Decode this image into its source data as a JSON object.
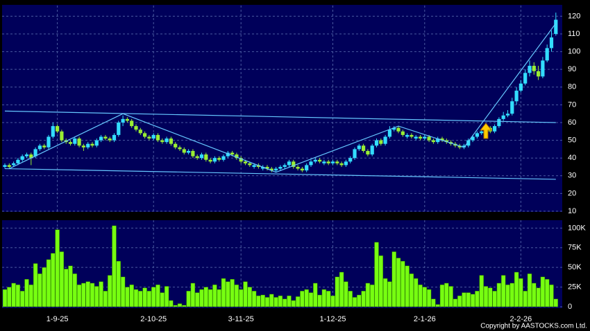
{
  "chart_data": {
    "type": "candlestick",
    "categories": [
      null,
      null,
      null,
      null,
      null,
      null,
      null,
      null,
      null,
      null,
      null,
      null,
      "1-9-25",
      null,
      null,
      null,
      null,
      null,
      null,
      null,
      null,
      null,
      null,
      null,
      null,
      null,
      null,
      null,
      null,
      null,
      null,
      null,
      null,
      null,
      "2-10-25",
      null,
      null,
      null,
      null,
      null,
      null,
      null,
      null,
      null,
      null,
      null,
      null,
      null,
      null,
      null,
      null,
      null,
      null,
      null,
      "3-11-25",
      null,
      null,
      null,
      null,
      null,
      null,
      null,
      null,
      null,
      null,
      null,
      null,
      null,
      null,
      null,
      null,
      null,
      null,
      null,
      null,
      "1-12-25",
      null,
      null,
      null,
      null,
      null,
      null,
      null,
      null,
      null,
      null,
      null,
      null,
      null,
      null,
      null,
      null,
      null,
      null,
      null,
      null,
      "2-1-26",
      null,
      null,
      null,
      null,
      null,
      null,
      null,
      null,
      null,
      null,
      null,
      null,
      null,
      null,
      null,
      null,
      null,
      null,
      null,
      null,
      null,
      "2-2-26",
      null,
      null,
      null,
      null,
      null,
      null,
      null,
      null
    ],
    "open": [
      35,
      36,
      36,
      37,
      39,
      41,
      42,
      41,
      45,
      47,
      46,
      52,
      58,
      55,
      50,
      49,
      48,
      51,
      47,
      46,
      48,
      47,
      50,
      52,
      51,
      50,
      53,
      60,
      62,
      61,
      58,
      56,
      54,
      52,
      51,
      53,
      50,
      49,
      51,
      48,
      46,
      45,
      43,
      44,
      41,
      40,
      42,
      39,
      38,
      40,
      39,
      41,
      43,
      42,
      40,
      38,
      37,
      35,
      36,
      34,
      35,
      34,
      33,
      34,
      35,
      36,
      38,
      35,
      34,
      33,
      36,
      38,
      39,
      37,
      38,
      37,
      38,
      37,
      36,
      38,
      40,
      45,
      47,
      44,
      42,
      47,
      50,
      48,
      52,
      56,
      57,
      55,
      52,
      53,
      51,
      52,
      51,
      52,
      50,
      49,
      51,
      50,
      49,
      48,
      47,
      46,
      47,
      50,
      52,
      54,
      55,
      57,
      55,
      58,
      62,
      64,
      65,
      72,
      78,
      82,
      88,
      92,
      89,
      86,
      95,
      102,
      110
    ],
    "high": [
      37,
      37,
      38,
      40,
      42,
      43,
      43,
      46,
      48,
      48,
      53,
      60,
      59,
      56,
      51,
      50,
      52,
      52,
      48,
      49,
      49,
      51,
      53,
      53,
      52,
      54,
      61,
      64,
      63,
      62,
      59,
      57,
      55,
      53,
      54,
      54,
      51,
      52,
      52,
      49,
      47,
      46,
      45,
      45,
      42,
      43,
      43,
      40,
      41,
      41,
      42,
      44,
      44,
      43,
      41,
      39,
      38,
      37,
      37,
      36,
      36,
      35,
      35,
      36,
      37,
      39,
      39,
      36,
      35,
      37,
      39,
      40,
      40,
      39,
      39,
      39,
      39,
      38,
      39,
      41,
      46,
      48,
      48,
      45,
      48,
      51,
      51,
      53,
      58,
      58,
      58,
      56,
      54,
      54,
      53,
      53,
      53,
      53,
      51,
      52,
      52,
      51,
      50,
      49,
      48,
      48,
      51,
      53,
      55,
      56,
      58,
      58,
      59,
      63,
      66,
      67,
      74,
      80,
      84,
      90,
      95,
      94,
      92,
      97,
      104,
      112,
      122
    ],
    "low": [
      34,
      34,
      35,
      36,
      38,
      40,
      36,
      40,
      44,
      45,
      45,
      51,
      54,
      49,
      48,
      47,
      47,
      46,
      44,
      45,
      46,
      46,
      49,
      50,
      49,
      49,
      52,
      58,
      60,
      57,
      55,
      53,
      51,
      50,
      50,
      49,
      48,
      48,
      47,
      45,
      44,
      42,
      42,
      40,
      39,
      39,
      38,
      37,
      37,
      38,
      38,
      40,
      41,
      39,
      37,
      36,
      35,
      34,
      34,
      33,
      33,
      32,
      32,
      33,
      34,
      35,
      34,
      33,
      32,
      32,
      35,
      37,
      37,
      36,
      36,
      36,
      36,
      35,
      35,
      37,
      39,
      44,
      43,
      41,
      41,
      46,
      47,
      47,
      51,
      55,
      54,
      52,
      51,
      51,
      50,
      50,
      50,
      49,
      48,
      48,
      49,
      48,
      47,
      46,
      45,
      45,
      46,
      49,
      51,
      53,
      54,
      54,
      54,
      57,
      61,
      63,
      64,
      70,
      77,
      81,
      86,
      87,
      84,
      85,
      94,
      100,
      109
    ],
    "close": [
      36,
      35,
      37,
      39,
      41,
      42,
      40,
      45,
      47,
      46,
      52,
      58,
      55,
      50,
      49,
      48,
      51,
      47,
      46,
      48,
      47,
      50,
      52,
      51,
      50,
      53,
      60,
      62,
      61,
      58,
      56,
      54,
      52,
      51,
      53,
      50,
      49,
      51,
      48,
      46,
      45,
      43,
      44,
      41,
      40,
      42,
      39,
      38,
      40,
      39,
      41,
      43,
      42,
      40,
      38,
      37,
      36,
      36,
      35,
      35,
      34,
      33,
      34,
      35,
      36,
      38,
      35,
      34,
      33,
      36,
      38,
      39,
      38,
      38,
      37,
      38,
      37,
      36,
      38,
      40,
      45,
      47,
      44,
      42,
      47,
      50,
      48,
      52,
      56,
      57,
      55,
      53,
      53,
      52,
      52,
      51,
      52,
      50,
      49,
      51,
      50,
      49,
      48,
      47,
      46,
      47,
      50,
      52,
      54,
      55,
      57,
      55,
      58,
      62,
      64,
      65,
      72,
      78,
      82,
      88,
      92,
      89,
      86,
      95,
      102,
      108,
      118
    ],
    "volume": [
      22000,
      25000,
      30000,
      28000,
      20000,
      35000,
      28000,
      55000,
      42000,
      50000,
      60000,
      68000,
      98000,
      70000,
      48000,
      52000,
      42000,
      28000,
      30000,
      32000,
      30000,
      26000,
      32000,
      20000,
      40000,
      103000,
      58000,
      38000,
      25000,
      28000,
      22000,
      20000,
      24000,
      20000,
      25000,
      28000,
      18000,
      26000,
      8000,
      2000,
      4000,
      2000,
      20000,
      30000,
      18000,
      22000,
      25000,
      22000,
      28000,
      22000,
      36000,
      32000,
      35000,
      28000,
      22000,
      32000,
      25000,
      20000,
      14000,
      15000,
      12000,
      16000,
      12000,
      14000,
      10000,
      14000,
      8000,
      13000,
      20000,
      22000,
      18000,
      30000,
      15000,
      22000,
      20000,
      14000,
      38000,
      44000,
      32000,
      20000,
      12000,
      15000,
      20000,
      30000,
      28000,
      82000,
      65000,
      36000,
      32000,
      70000,
      62000,
      58000,
      52000,
      42000,
      36000,
      28000,
      25000,
      22000,
      10000,
      3000,
      28000,
      30000,
      26000,
      10000,
      14000,
      18000,
      18000,
      16000,
      20000,
      40000,
      26000,
      24000,
      20000,
      30000,
      40000,
      28000,
      30000,
      44000,
      36000,
      20000,
      42000,
      30000,
      24000,
      38000,
      35000,
      28000,
      10000
    ],
    "up_color": "#33ddff",
    "down_color": "#99ee33",
    "volume_color": "#77ff11",
    "ylim": [
      10,
      126
    ],
    "yticks": [
      10,
      20,
      30,
      40,
      50,
      60,
      70,
      80,
      90,
      100,
      110,
      120
    ],
    "volume_ylim": [
      0,
      110000
    ],
    "volume_yticks": [
      {
        "value": 0,
        "label": "0"
      },
      {
        "value": 25000,
        "label": "25K"
      },
      {
        "value": 50000,
        "label": "50K"
      },
      {
        "value": 75000,
        "label": "75K"
      },
      {
        "value": 100000,
        "label": "100K"
      }
    ],
    "trend_color": "#66c8ff",
    "trend_lines": [
      {
        "x": [
          0,
          126
        ],
        "y": [
          66.5,
          60
        ]
      },
      {
        "x": [
          0,
          126
        ],
        "y": [
          34,
          28
        ]
      },
      {
        "x": [
          1,
          27,
          62,
          90,
          105,
          126
        ],
        "y": [
          34,
          65,
          32,
          58,
          46,
          116
        ]
      }
    ],
    "grid": true
  },
  "copyright": "Copyright by AASTOCKS.com Ltd."
}
